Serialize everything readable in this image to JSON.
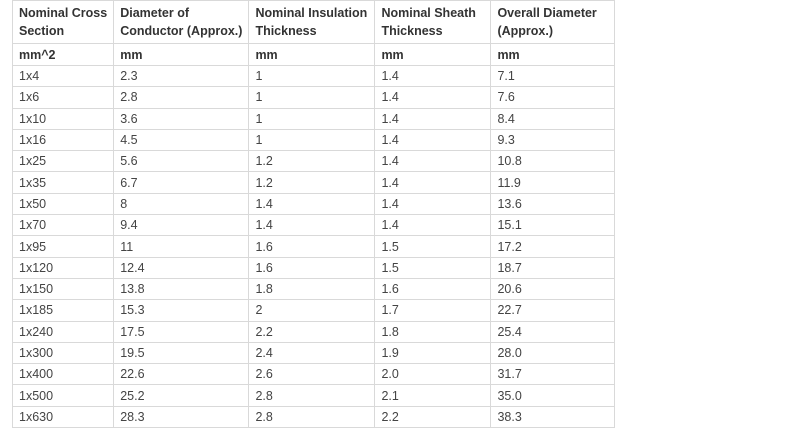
{
  "table": {
    "headers": [
      [
        "Nominal Cross",
        "Section"
      ],
      [
        "Diameter of",
        "Conductor (Approx.)"
      ],
      [
        "Nominal Insulation",
        "Thickness"
      ],
      [
        "Nominal Sheath",
        "Thickness"
      ],
      [
        "Overall Diameter",
        "(Approx.)"
      ]
    ],
    "units": [
      "mm^2",
      "mm",
      "mm",
      "mm",
      "mm"
    ],
    "rows": [
      [
        "1x4",
        "2.3",
        "1",
        "1.4",
        "7.1"
      ],
      [
        "1x6",
        "2.8",
        "1",
        "1.4",
        "7.6"
      ],
      [
        "1x10",
        "3.6",
        "1",
        "1.4",
        "8.4"
      ],
      [
        "1x16",
        "4.5",
        "1",
        "1.4",
        "9.3"
      ],
      [
        "1x25",
        "5.6",
        "1.2",
        "1.4",
        "10.8"
      ],
      [
        "1x35",
        "6.7",
        "1.2",
        "1.4",
        "11.9"
      ],
      [
        "1x50",
        "8",
        "1.4",
        "1.4",
        "13.6"
      ],
      [
        "1x70",
        "9.4",
        "1.4",
        "1.4",
        "15.1"
      ],
      [
        "1x95",
        "11",
        "1.6",
        "1.5",
        "17.2"
      ],
      [
        "1x120",
        "12.4",
        "1.6",
        "1.5",
        "18.7"
      ],
      [
        "1x150",
        "13.8",
        "1.8",
        "1.6",
        "20.6"
      ],
      [
        "1x185",
        "15.3",
        "2",
        "1.7",
        "22.7"
      ],
      [
        "1x240",
        "17.5",
        "2.2",
        "1.8",
        "25.4"
      ],
      [
        "1x300",
        "19.5",
        "2.4",
        "1.9",
        "28.0"
      ],
      [
        "1x400",
        "22.6",
        "2.6",
        "2.0",
        "31.7"
      ],
      [
        "1x500",
        "25.2",
        "2.8",
        "2.1",
        "35.0"
      ],
      [
        "1x630",
        "28.3",
        "2.8",
        "2.2",
        "38.3"
      ]
    ]
  }
}
